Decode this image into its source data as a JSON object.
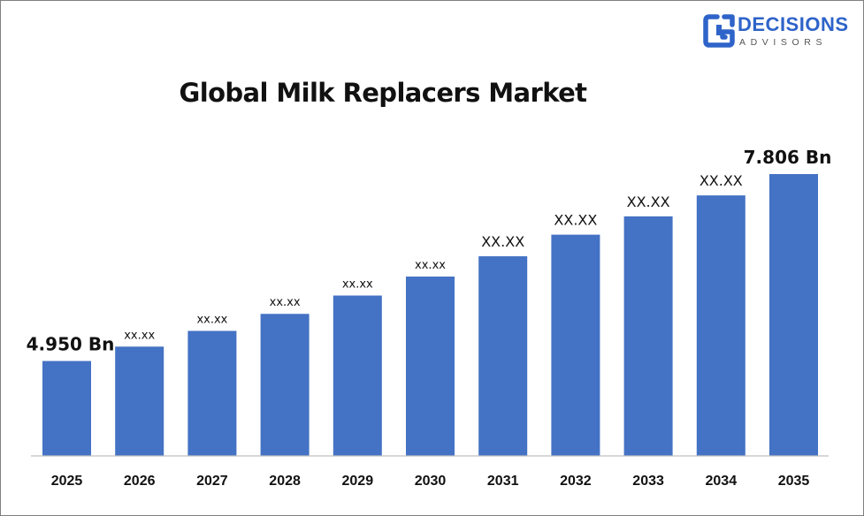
{
  "brand": {
    "name_main": "DECISIONS",
    "name_sub": "ADVISORS",
    "color": "#2e63c9",
    "icon": "decisions-advisors-logo-icon"
  },
  "chart_data": {
    "type": "bar",
    "title": "Global Milk Replacers Market",
    "xlabel": "",
    "ylabel": "",
    "categories": [
      "2025",
      "2026",
      "2027",
      "2028",
      "2029",
      "2030",
      "2031",
      "2032",
      "2033",
      "2034",
      "2035"
    ],
    "values": [
      4.95,
      5.17,
      5.41,
      5.67,
      5.95,
      6.24,
      6.55,
      6.88,
      7.16,
      7.48,
      7.806
    ],
    "data_labels": [
      "4.950 Bn",
      "xx.xx",
      "xx.xx",
      "xx.xx",
      "xx.xx",
      "xx.xx",
      "XX.XX",
      "XX.XX",
      "XX.XX",
      "XX.XX",
      "7.806 Bn"
    ],
    "ylim": [
      3.5,
      7.806
    ],
    "grid": false,
    "legend": "none",
    "bar_color": "#4472c4"
  }
}
